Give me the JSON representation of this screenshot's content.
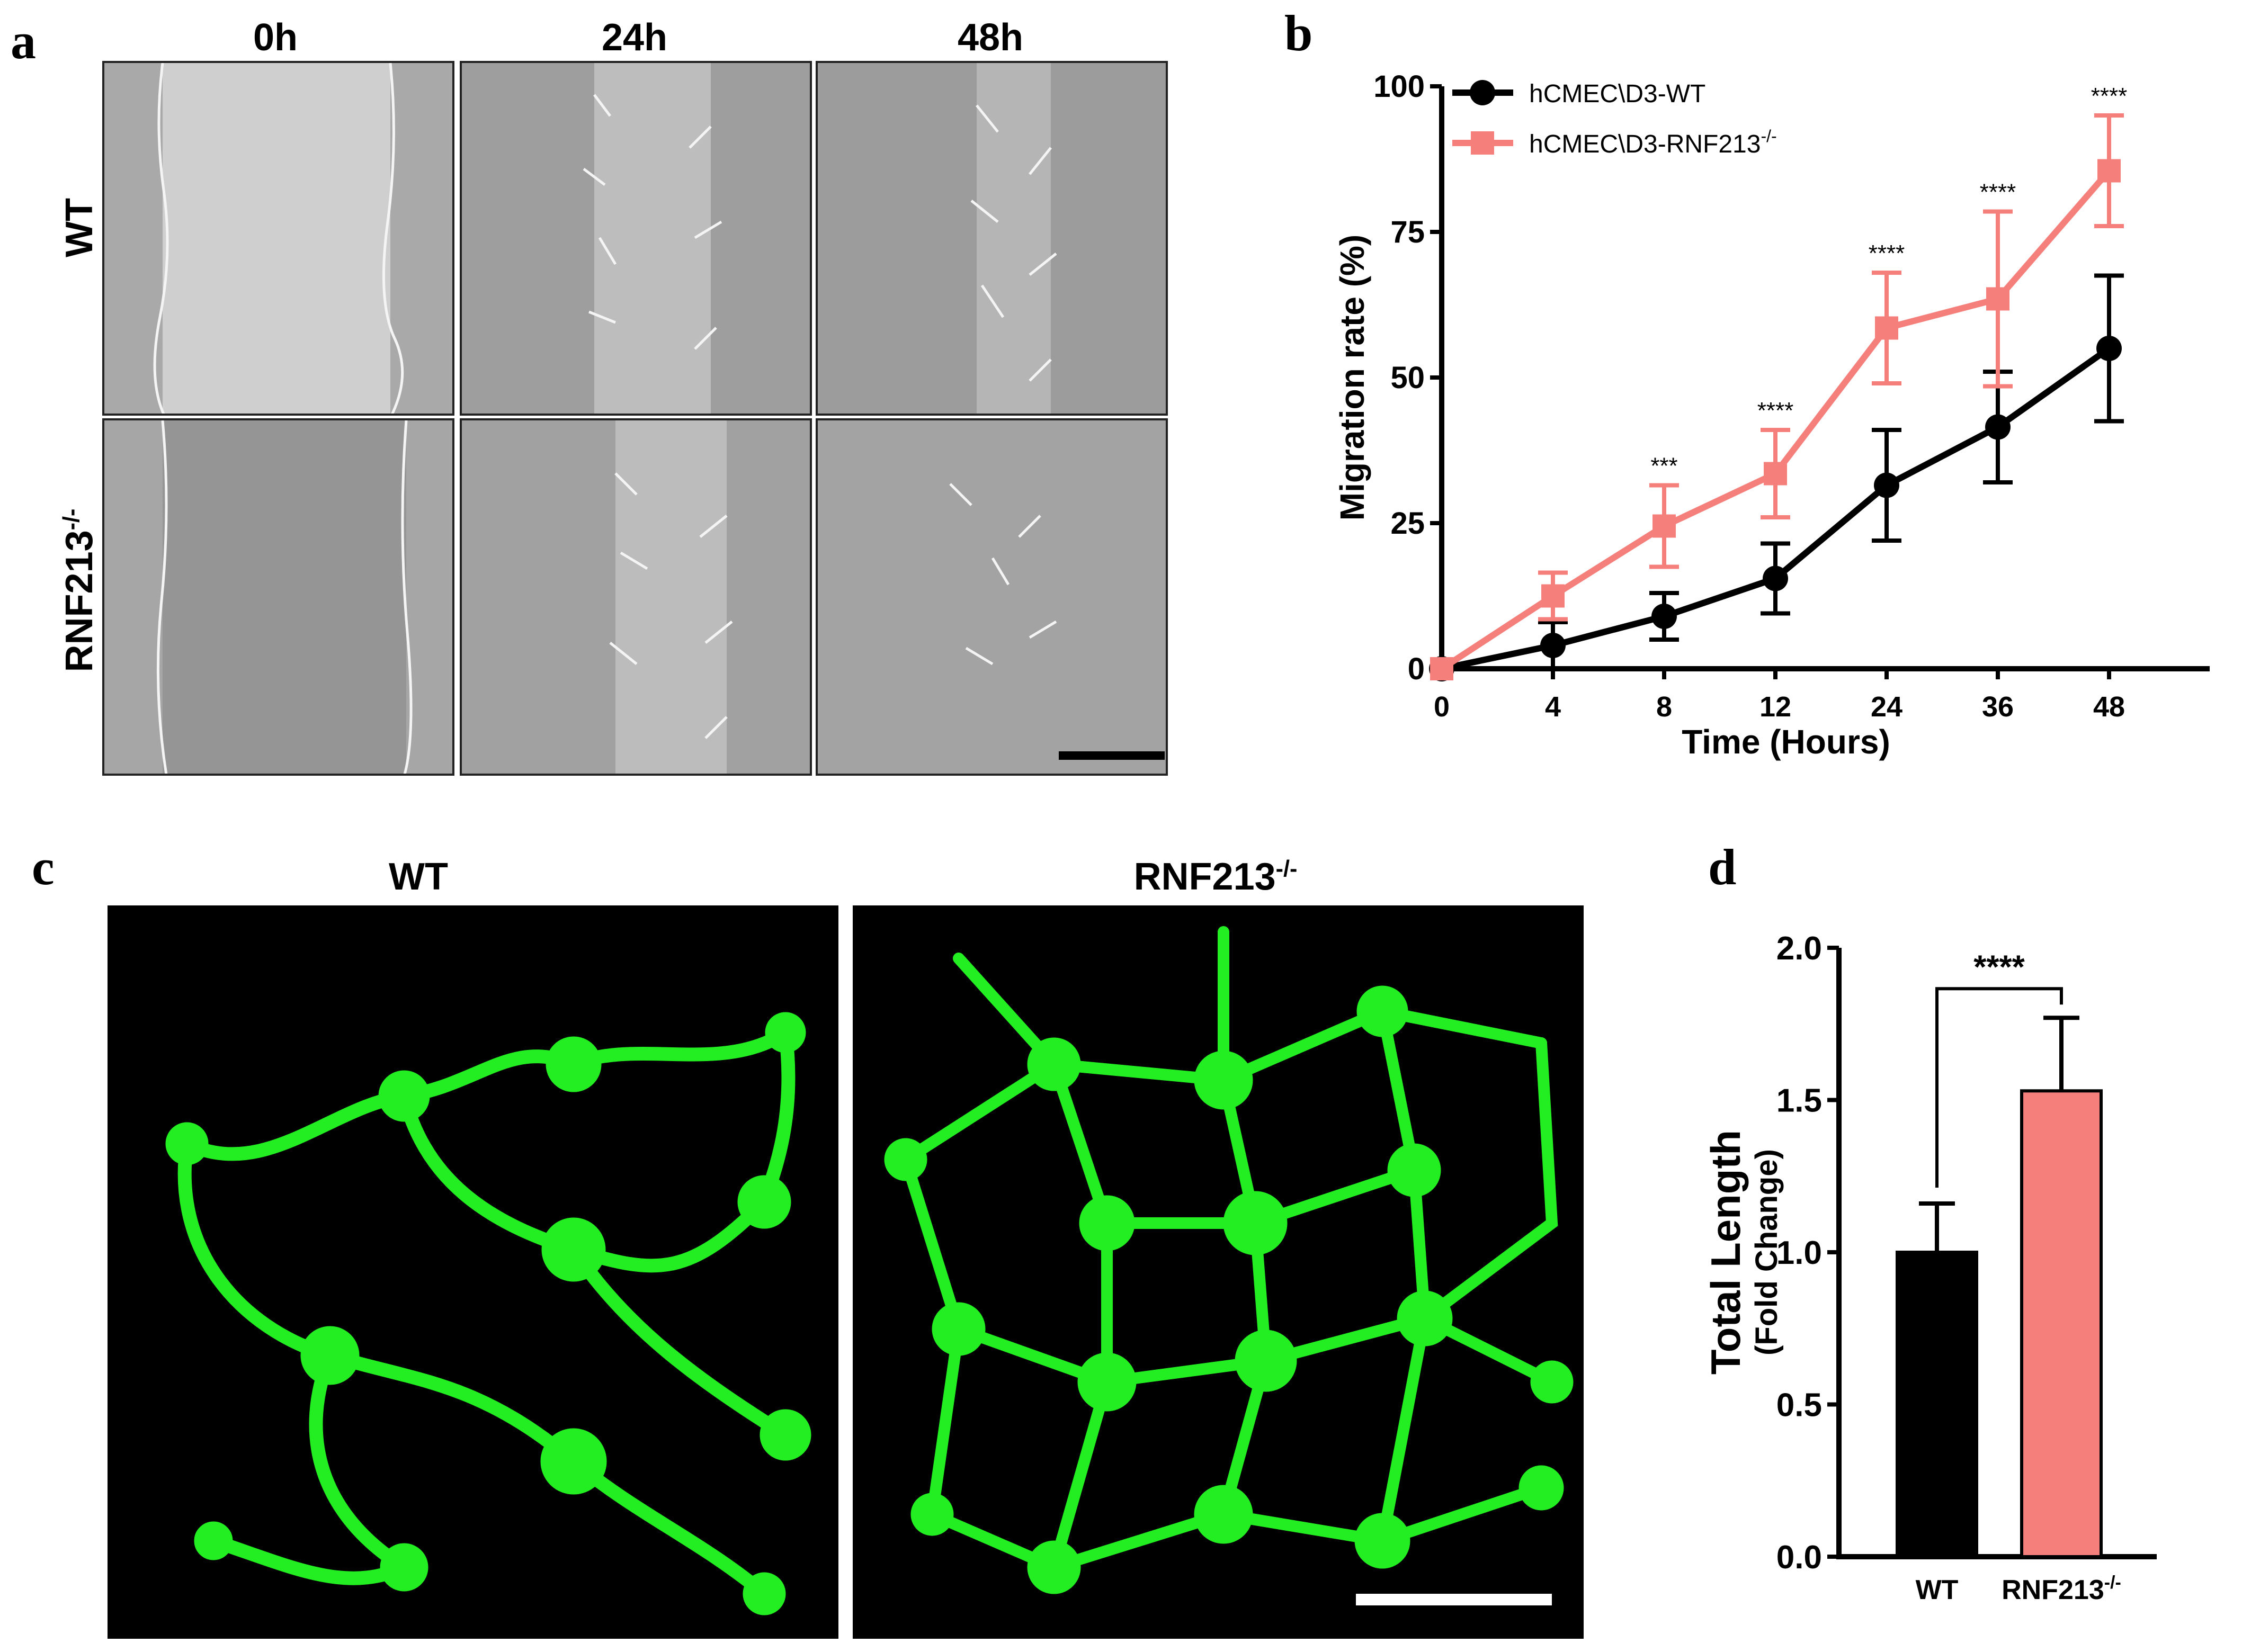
{
  "panel_a": {
    "letter": "a",
    "columns": [
      "0h",
      "24h",
      "48h"
    ],
    "rows": [
      {
        "label": "WT",
        "superscript": ""
      },
      {
        "label": "RNF213",
        "superscript": "-/-"
      }
    ]
  },
  "panel_b": {
    "letter": "b"
  },
  "panel_c": {
    "letter": "c",
    "labels": [
      {
        "label": "WT",
        "superscript": ""
      },
      {
        "label": "RNF213",
        "superscript": "-/-"
      }
    ]
  },
  "panel_d": {
    "letter": "d"
  },
  "colors": {
    "wt": "#000000",
    "ko": "#f47f7b",
    "fluorescence": "#22ee22"
  },
  "chart_data": [
    {
      "type": "line",
      "x": [
        0,
        4,
        8,
        12,
        24,
        36,
        48
      ],
      "x_tick_labels": [
        "0",
        "4",
        "8",
        "12",
        "24",
        "36",
        "48"
      ],
      "xlabel": "Time (Hours)",
      "ylabel": "Migration rate (%)",
      "ylim": [
        0,
        100
      ],
      "y_ticks": [
        0,
        25,
        50,
        75,
        100
      ],
      "legend": "top-left",
      "series": [
        {
          "name": "hCMEC\\D3-WT",
          "name_superscript": "",
          "color": "#000000",
          "marker": "circle",
          "values": [
            0,
            4,
            9,
            15.5,
            31.5,
            41.5,
            55
          ],
          "error": [
            0,
            4,
            4,
            6,
            9.5,
            9.5,
            12.5
          ]
        },
        {
          "name": "hCMEC\\D3-RNF213",
          "name_superscript": "-/-",
          "color": "#f47f7b",
          "marker": "square",
          "values": [
            0,
            12.5,
            24.5,
            33.5,
            58.5,
            63.5,
            85.5
          ],
          "error": [
            0,
            4,
            7,
            7.5,
            9.5,
            15,
            9.5
          ]
        }
      ],
      "annotations": [
        "",
        "",
        "***",
        "****",
        "****",
        "****",
        "****"
      ]
    },
    {
      "type": "bar",
      "categories": [
        "WT",
        "RNF213"
      ],
      "category_superscripts": [
        "",
        "-/-"
      ],
      "values": [
        1.0,
        1.53
      ],
      "error": [
        0.16,
        0.24
      ],
      "colors": [
        "#000000",
        "#f47f7b"
      ],
      "ylabel": "Total Length",
      "ylabel2": "(Fold Change)",
      "ylim": [
        0,
        2.0
      ],
      "y_tick_labels": [
        "0.0",
        "0.5",
        "1.0",
        "1.5",
        "2.0"
      ],
      "significance": "****"
    }
  ]
}
